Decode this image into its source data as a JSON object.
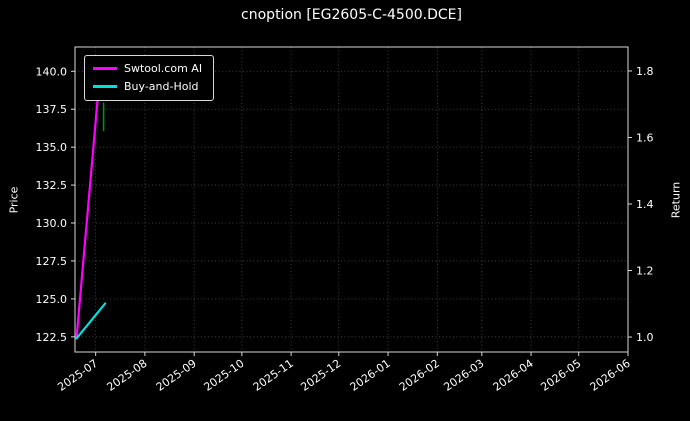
{
  "chart_data": {
    "type": "line",
    "title": "cnoption [EG2605-C-4500.DCE]",
    "background_color": "#000000",
    "text_color": "#ffffff",
    "grid_color": "#4d4d4d",
    "spine_color": "#d9d9d9",
    "x_domain": [
      "2025-06-18",
      "2026-06-01"
    ],
    "x_ticks": [
      "2025-07",
      "2025-08",
      "2025-09",
      "2025-10",
      "2025-11",
      "2025-12",
      "2026-01",
      "2026-02",
      "2026-03",
      "2026-04",
      "2026-05",
      "2026-06"
    ],
    "left_axis": {
      "label": "Price",
      "ticks": [
        "122.5",
        "125.0",
        "127.5",
        "130.0",
        "132.5",
        "135.0",
        "137.5",
        "140.0"
      ],
      "range": [
        121.5,
        141.6
      ]
    },
    "right_axis": {
      "label": "Return",
      "ticks": [
        "1.0",
        "1.2",
        "1.4",
        "1.6",
        "1.8"
      ],
      "range": [
        0.955,
        1.872
      ]
    },
    "legend": {
      "entries": [
        {
          "label": "Swtool.com AI",
          "color": "#ff00ff"
        },
        {
          "label": "Buy-and-Hold",
          "color": "#00e0e0"
        }
      ]
    },
    "series": [
      {
        "name": "Swtool.com AI",
        "color": "#ff00ff",
        "width": 2.2,
        "points": [
          [
            "2025-06-19",
            122.45
          ],
          [
            "2025-07-04",
            140.25
          ]
        ]
      },
      {
        "name": "Buy-and-Hold",
        "color": "#00e0e0",
        "width": 2.2,
        "points": [
          [
            "2025-06-19",
            122.4
          ],
          [
            "2025-07-07",
            124.7
          ]
        ]
      },
      {
        "name": "price-marker",
        "color": "#0d8c0d",
        "width": 1.6,
        "points": [
          [
            "2025-07-06",
            137.9
          ],
          [
            "2025-07-06",
            136.1
          ]
        ]
      }
    ]
  }
}
